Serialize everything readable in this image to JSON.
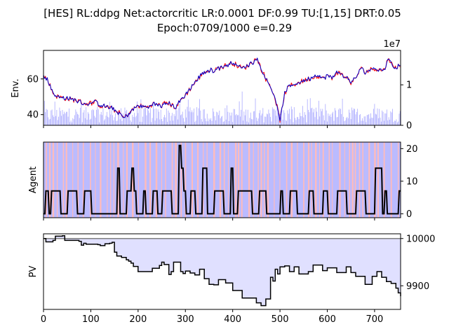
{
  "figure": {
    "title_line1": "[HES] RL:ddpg Net:actorcritic LR:0.0001 DF:0.99 TU:[1,15] DRT:0.05",
    "title_line2": "Epoch:0709/1000 e=0.29"
  },
  "chart_data": [
    {
      "name": "env",
      "type": "line",
      "ylabel": "Env.",
      "xlim": [
        0,
        755
      ],
      "ylim": [
        34,
        76
      ],
      "yticks": [
        40,
        60
      ],
      "ylim_right": [
        0,
        18500000
      ],
      "yticks_right": [
        0,
        1
      ],
      "right_offset_label": "1e7",
      "colors": {
        "line_a": "#ff0000",
        "line_b": "#0000cc",
        "volume": "#aaaaff"
      },
      "x": [
        0,
        10,
        20,
        30,
        50,
        70,
        90,
        110,
        120,
        140,
        160,
        170,
        190,
        200,
        220,
        230,
        250,
        260,
        280,
        290,
        300,
        320,
        340,
        360,
        380,
        400,
        420,
        430,
        445,
        450,
        460,
        470,
        480,
        490,
        500,
        505,
        510,
        520,
        540,
        560,
        580,
        590,
        600,
        610,
        620,
        640,
        650,
        660,
        670,
        680,
        700,
        710,
        720,
        730,
        740,
        755
      ],
      "y": [
        62,
        59,
        52,
        50,
        49,
        48,
        46,
        47,
        45,
        44,
        41,
        38,
        43,
        45,
        44,
        46,
        45,
        47,
        44,
        48,
        51,
        58,
        64,
        65,
        67,
        69,
        66,
        67,
        70,
        72,
        66,
        60,
        56,
        49,
        37,
        44,
        52,
        56,
        58,
        60,
        62,
        60,
        62,
        60,
        64,
        61,
        58,
        60,
        66,
        64,
        66,
        65,
        65,
        72,
        66,
        68
      ]
    },
    {
      "name": "agent",
      "type": "line",
      "ylabel": "Agent",
      "xlim": [
        0,
        755
      ],
      "ylim": [
        -1.2,
        22
      ],
      "yticks": [
        0,
        10,
        20
      ],
      "colors": {
        "line": "#000000",
        "background": "#bbbbff",
        "highlight": "#ffbbbb"
      },
      "x": [
        0,
        3,
        5,
        10,
        12,
        15,
        17,
        35,
        37,
        50,
        52,
        70,
        72,
        85,
        87,
        100,
        102,
        155,
        157,
        160,
        162,
        175,
        177,
        185,
        187,
        190,
        192,
        195,
        197,
        210,
        212,
        215,
        217,
        230,
        232,
        240,
        242,
        250,
        252,
        270,
        272,
        285,
        287,
        290,
        292,
        295,
        297,
        300,
        302,
        310,
        312,
        320,
        322,
        335,
        337,
        345,
        347,
        360,
        362,
        380,
        382,
        395,
        397,
        400,
        402,
        410,
        412,
        440,
        442,
        455,
        457,
        470,
        472,
        500,
        502,
        505,
        507,
        520,
        522,
        535,
        537,
        560,
        562,
        570,
        572,
        590,
        592,
        600,
        602,
        620,
        622,
        640,
        642,
        660,
        662,
        680,
        682,
        700,
        702,
        715,
        717,
        720,
        722,
        725,
        727,
        750,
        752,
        755
      ],
      "y": [
        0,
        0,
        7,
        7,
        0,
        0,
        7,
        7,
        0,
        0,
        7,
        7,
        0,
        0,
        7,
        7,
        0,
        0,
        14,
        14,
        0,
        0,
        7,
        7,
        14,
        14,
        7,
        7,
        0,
        0,
        7,
        7,
        0,
        0,
        7,
        7,
        0,
        0,
        7,
        7,
        0,
        0,
        21,
        21,
        14,
        14,
        7,
        7,
        0,
        0,
        7,
        7,
        0,
        0,
        14,
        14,
        0,
        0,
        7,
        7,
        0,
        0,
        14,
        14,
        0,
        0,
        7,
        7,
        0,
        0,
        7,
        7,
        0,
        0,
        7,
        7,
        0,
        0,
        7,
        7,
        0,
        0,
        7,
        7,
        0,
        0,
        7,
        7,
        0,
        0,
        7,
        7,
        0,
        0,
        7,
        7,
        0,
        0,
        14,
        14,
        0,
        0,
        7,
        7,
        0,
        0,
        7,
        7
      ]
    },
    {
      "name": "pv",
      "type": "area",
      "ylabel": "PV",
      "xlim": [
        0,
        755
      ],
      "ylim": [
        9850,
        10010
      ],
      "yticks": [
        9900,
        10000
      ],
      "baseline": 10000,
      "colors": {
        "line": "#000000",
        "fill": "#e0e0ff",
        "baseline": "#808080"
      },
      "x": [
        0,
        5,
        20,
        25,
        40,
        45,
        75,
        80,
        85,
        90,
        115,
        120,
        130,
        140,
        145,
        150,
        155,
        165,
        175,
        180,
        185,
        190,
        200,
        225,
        230,
        245,
        250,
        255,
        265,
        270,
        275,
        290,
        295,
        300,
        310,
        320,
        330,
        340,
        350,
        360,
        370,
        385,
        400,
        420,
        450,
        460,
        470,
        480,
        485,
        490,
        495,
        500,
        510,
        520,
        530,
        540,
        560,
        570,
        590,
        600,
        620,
        640,
        650,
        660,
        680,
        695,
        705,
        715,
        725,
        735,
        745,
        750,
        755
      ],
      "y": [
        10000,
        9993,
        9996,
        10005,
        10006,
        9996,
        9994,
        9986,
        9990,
        9988,
        9987,
        9985,
        9989,
        9990,
        9992,
        9971,
        9963,
        9960,
        9955,
        9952,
        9948,
        9941,
        9930,
        9930,
        9937,
        9943,
        9950,
        9945,
        9924,
        9930,
        9950,
        9930,
        9926,
        9931,
        9927,
        9923,
        9935,
        9915,
        9903,
        9902,
        9913,
        9906,
        9890,
        9874,
        9864,
        9858,
        9872,
        9918,
        9910,
        9935,
        9925,
        9940,
        9942,
        9930,
        9940,
        9925,
        9930,
        9944,
        9932,
        9938,
        9928,
        9940,
        9928,
        9920,
        9903,
        9920,
        9930,
        9918,
        9909,
        9905,
        9895,
        9885,
        9878
      ]
    }
  ],
  "xaxis": {
    "ticks": [
      0,
      100,
      200,
      300,
      400,
      500,
      600,
      700
    ]
  }
}
